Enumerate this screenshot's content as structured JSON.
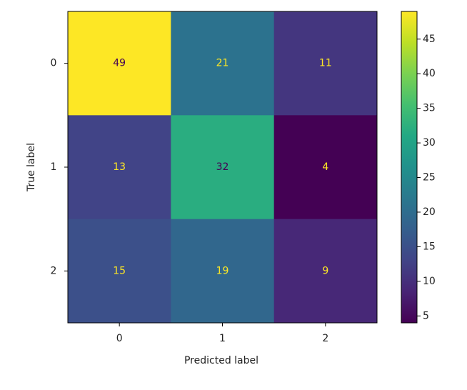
{
  "chart_data": {
    "type": "heatmap",
    "x_label": "Predicted label",
    "y_label": "True label",
    "x_categories": [
      "0",
      "1",
      "2"
    ],
    "y_categories": [
      "0",
      "1",
      "2"
    ],
    "z": [
      [
        49,
        21,
        11
      ],
      [
        13,
        32,
        4
      ],
      [
        15,
        19,
        9
      ]
    ],
    "colormap": "viridis",
    "clim": [
      4,
      49
    ],
    "cticks": [
      5,
      10,
      15,
      20,
      25,
      30,
      35,
      40,
      45
    ]
  }
}
